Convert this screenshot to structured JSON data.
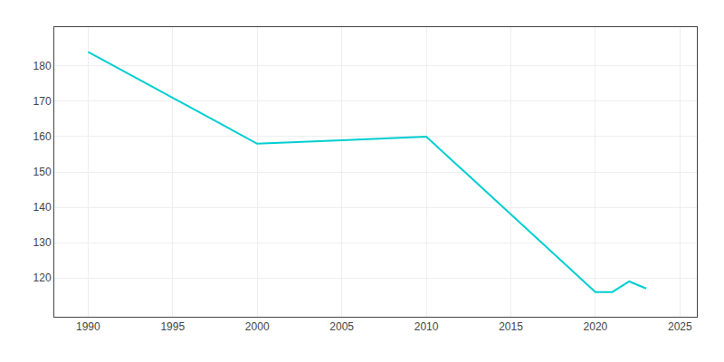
{
  "chart_data": {
    "type": "line",
    "x": [
      1990,
      2000,
      2005,
      2010,
      2020,
      2021,
      2022,
      2023
    ],
    "values": [
      184,
      158,
      159,
      160,
      116,
      116,
      119,
      117
    ],
    "color": "#00CED1",
    "xlim": [
      1988,
      2026
    ],
    "ylim": [
      109,
      191
    ],
    "xticks": [
      1990,
      1995,
      2000,
      2005,
      2010,
      2015,
      2020,
      2025
    ],
    "yticks": [
      120,
      130,
      140,
      150,
      160,
      170,
      180
    ],
    "grid": true
  }
}
